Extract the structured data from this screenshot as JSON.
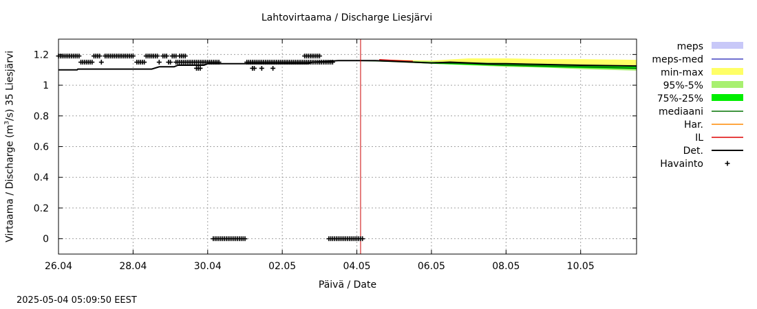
{
  "chart_data": {
    "type": "line",
    "title": "Lahtovirtaama / Discharge  Liesjärvi",
    "xlabel": "Päivä / Date",
    "ylabel": {
      "prefix": "Virtaama / Discharge (m",
      "sup": "3",
      "suffix": "/s)  35 Liesjärvi"
    },
    "ylim": [
      -0.1,
      1.3
    ],
    "xlim_days": [
      0,
      15.5
    ],
    "grid": true,
    "legend_position": "right",
    "y_ticks": [
      {
        "value": 0,
        "label": "0"
      },
      {
        "value": 0.2,
        "label": "0.2"
      },
      {
        "value": 0.4,
        "label": "0.4"
      },
      {
        "value": 0.6,
        "label": "0.6"
      },
      {
        "value": 0.8,
        "label": "0.8"
      },
      {
        "value": 1.0,
        "label": "1"
      },
      {
        "value": 1.2,
        "label": "1.2"
      }
    ],
    "x_ticks": [
      {
        "day": 0,
        "label": "26.04"
      },
      {
        "day": 2,
        "label": "28.04"
      },
      {
        "day": 4,
        "label": "30.04"
      },
      {
        "day": 6,
        "label": "02.05"
      },
      {
        "day": 8,
        "label": "04.05"
      },
      {
        "day": 10,
        "label": "06.05"
      },
      {
        "day": 12,
        "label": "08.05"
      },
      {
        "day": 14,
        "label": "10.05"
      }
    ],
    "forecast_start_day": 8.1,
    "det": [
      [
        0,
        1.1
      ],
      [
        0.5,
        1.1
      ],
      [
        0.52,
        1.105
      ],
      [
        2.5,
        1.105
      ],
      [
        2.7,
        1.12
      ],
      [
        3.1,
        1.12
      ],
      [
        3.2,
        1.13
      ],
      [
        3.9,
        1.13
      ],
      [
        4.0,
        1.14
      ],
      [
        6.7,
        1.14
      ],
      [
        6.8,
        1.15
      ],
      [
        7.2,
        1.155
      ],
      [
        7.5,
        1.16
      ],
      [
        8.1,
        1.16
      ],
      [
        8.5,
        1.16
      ],
      [
        9.0,
        1.155
      ],
      [
        9.5,
        1.15
      ],
      [
        10.0,
        1.145
      ],
      [
        10.5,
        1.15
      ],
      [
        11.0,
        1.145
      ],
      [
        11.5,
        1.14
      ],
      [
        12.0,
        1.14
      ],
      [
        13.0,
        1.135
      ],
      [
        14.0,
        1.13
      ],
      [
        15.5,
        1.125
      ]
    ],
    "il": [
      [
        8.6,
        1.165
      ],
      [
        9.0,
        1.16
      ],
      [
        9.5,
        1.155
      ]
    ],
    "median": [
      [
        8.1,
        1.16
      ],
      [
        9.0,
        1.155
      ],
      [
        10.0,
        1.145
      ],
      [
        11.0,
        1.14
      ],
      [
        12.0,
        1.13
      ],
      [
        13.0,
        1.125
      ],
      [
        14.0,
        1.12
      ],
      [
        15.5,
        1.11
      ]
    ],
    "band_minmax": [
      [
        8.1,
        1.16,
        1.16
      ],
      [
        9.0,
        1.165,
        1.15
      ],
      [
        10.0,
        1.16,
        1.14
      ],
      [
        11.0,
        1.175,
        1.13
      ],
      [
        12.0,
        1.175,
        1.12
      ],
      [
        13.0,
        1.17,
        1.115
      ],
      [
        14.0,
        1.17,
        1.11
      ],
      [
        15.5,
        1.165,
        1.1
      ]
    ],
    "band_95_5": [
      [
        8.1,
        1.16,
        1.16
      ],
      [
        9.0,
        1.16,
        1.15
      ],
      [
        10.0,
        1.155,
        1.14
      ],
      [
        11.0,
        1.15,
        1.13
      ],
      [
        12.0,
        1.145,
        1.12
      ],
      [
        13.0,
        1.14,
        1.115
      ],
      [
        14.0,
        1.135,
        1.105
      ],
      [
        15.5,
        1.13,
        1.095
      ]
    ],
    "band_75_25": [
      [
        8.1,
        1.16,
        1.16
      ],
      [
        9.0,
        1.158,
        1.152
      ],
      [
        10.0,
        1.15,
        1.14
      ],
      [
        11.0,
        1.145,
        1.132
      ],
      [
        12.0,
        1.138,
        1.125
      ],
      [
        13.0,
        1.133,
        1.118
      ],
      [
        14.0,
        1.128,
        1.112
      ],
      [
        15.5,
        1.12,
        1.105
      ]
    ],
    "observations": [
      {
        "from": 0.0,
        "to": 0.55,
        "step": 0.05,
        "value": 1.19
      },
      {
        "from": 0.6,
        "to": 0.9,
        "step": 0.05,
        "value": 1.15
      },
      {
        "from": 0.95,
        "to": 1.1,
        "step": 0.05,
        "value": 1.19
      },
      {
        "from": 1.15,
        "to": 1.15,
        "step": 0.05,
        "value": 1.15
      },
      {
        "from": 1.25,
        "to": 2.0,
        "step": 0.05,
        "value": 1.19
      },
      {
        "from": 2.1,
        "to": 2.3,
        "step": 0.05,
        "value": 1.15
      },
      {
        "from": 2.35,
        "to": 2.65,
        "step": 0.05,
        "value": 1.19
      },
      {
        "from": 2.7,
        "to": 2.7,
        "step": 0.05,
        "value": 1.15
      },
      {
        "from": 2.8,
        "to": 2.9,
        "step": 0.05,
        "value": 1.19
      },
      {
        "from": 2.95,
        "to": 3.0,
        "step": 0.05,
        "value": 1.15
      },
      {
        "from": 3.05,
        "to": 3.15,
        "step": 0.05,
        "value": 1.19
      },
      {
        "from": 3.25,
        "to": 3.4,
        "step": 0.05,
        "value": 1.19
      },
      {
        "from": 3.15,
        "to": 3.3,
        "step": 0.05,
        "value": 1.15
      },
      {
        "from": 3.35,
        "to": 3.8,
        "step": 0.05,
        "value": 1.15
      },
      {
        "from": 3.7,
        "to": 3.8,
        "step": 0.05,
        "value": 1.11
      },
      {
        "from": 3.85,
        "to": 4.3,
        "step": 0.05,
        "value": 1.15
      },
      {
        "from": 4.15,
        "to": 5.0,
        "step": 0.05,
        "value": 0.0
      },
      {
        "from": 5.05,
        "to": 5.25,
        "step": 0.05,
        "value": 1.15
      },
      {
        "from": 5.2,
        "to": 5.25,
        "step": 0.05,
        "value": 1.11
      },
      {
        "from": 5.45,
        "to": 5.45,
        "step": 0.05,
        "value": 1.11
      },
      {
        "from": 5.75,
        "to": 5.75,
        "step": 0.05,
        "value": 1.11
      },
      {
        "from": 5.3,
        "to": 7.0,
        "step": 0.05,
        "value": 1.15
      },
      {
        "from": 6.6,
        "to": 7.0,
        "step": 0.05,
        "value": 1.19
      },
      {
        "from": 7.0,
        "to": 7.35,
        "step": 0.05,
        "value": 1.15
      },
      {
        "from": 7.25,
        "to": 8.15,
        "step": 0.05,
        "value": 0.0
      }
    ],
    "legend": [
      {
        "label": "meps",
        "kind": "box",
        "color": "#c8c8f8"
      },
      {
        "label": "meps-med",
        "kind": "line",
        "color": "#4040c0"
      },
      {
        "label": "min-max",
        "kind": "box",
        "color": "#ffff66"
      },
      {
        "label": "95%-5%",
        "kind": "box",
        "color": "#a8f070"
      },
      {
        "label": "75%-25%",
        "kind": "box",
        "color": "#00ee00"
      },
      {
        "label": "mediaani",
        "kind": "line",
        "color": "#007000"
      },
      {
        "label": "Har.",
        "kind": "line",
        "color": "#ff8800"
      },
      {
        "label": "IL",
        "kind": "line",
        "color": "#dd0000"
      },
      {
        "label": "Det.",
        "kind": "line",
        "color": "#000000"
      },
      {
        "label": "Havainto",
        "kind": "plus",
        "color": "#000000"
      }
    ]
  },
  "colors": {
    "grid": "#a0a0a0",
    "forecast_line": "#cc0000",
    "minmax": "#ffff66",
    "band95": "#a8f070",
    "band75": "#00ee00",
    "median": "#007000",
    "il": "#dd0000",
    "det": "#000000"
  },
  "timestamp": "2025-05-04  05:09:50 EEST"
}
